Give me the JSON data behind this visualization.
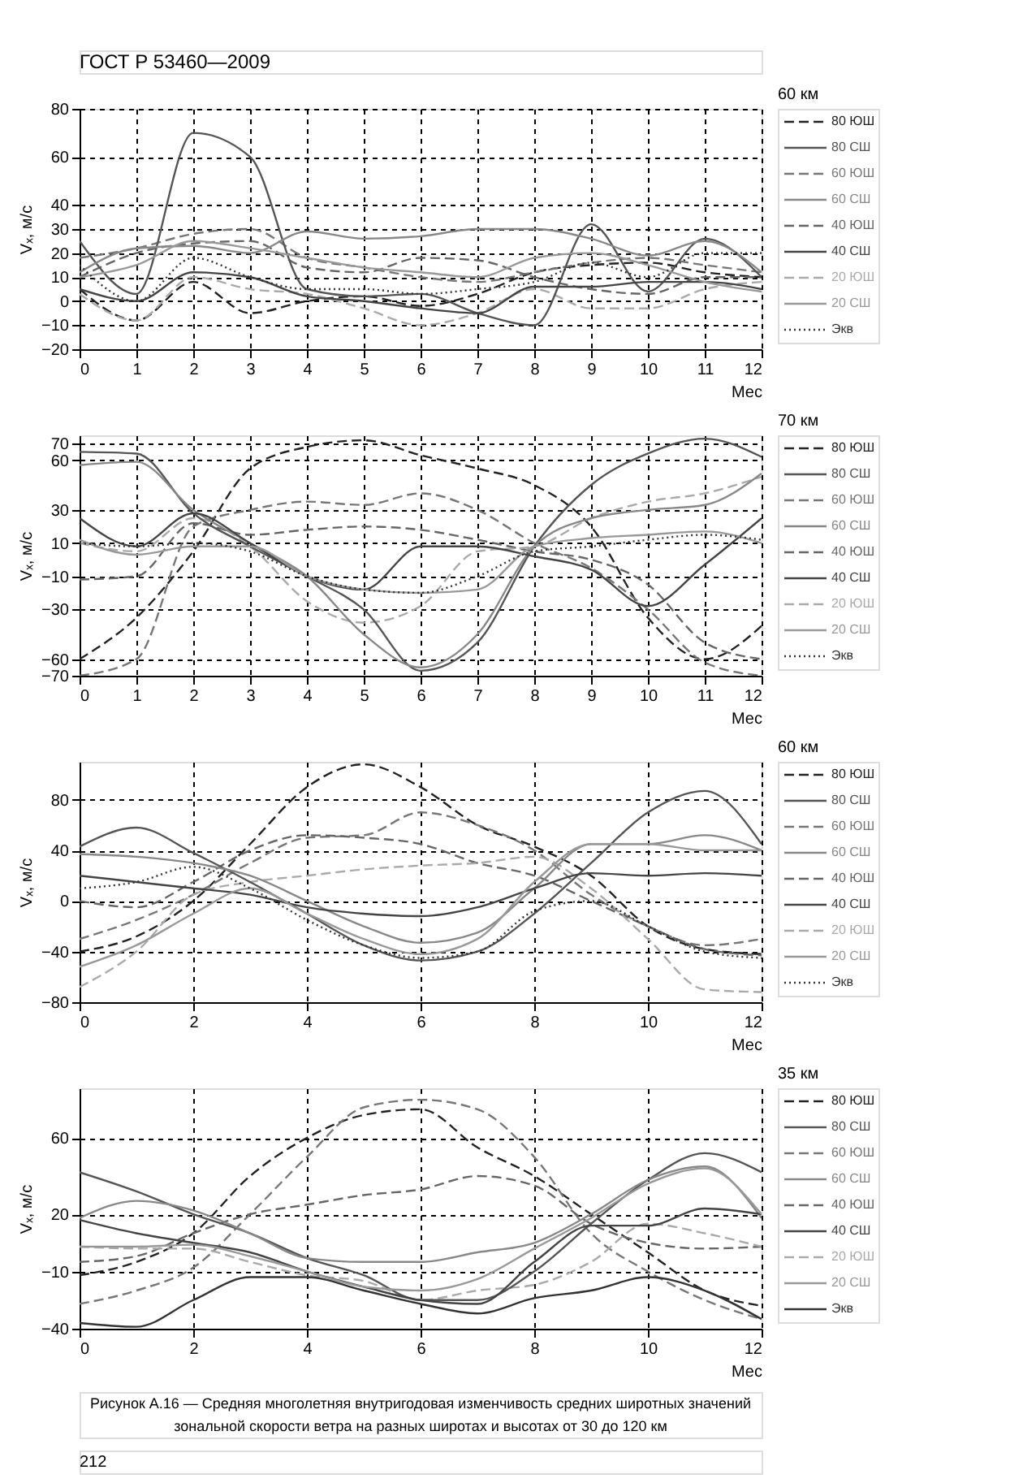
{
  "chart_data": [
    {
      "type": "line",
      "annotations": [
        "ГОСТ Р 53460—2009"
      ],
      "legend_title": "60 км",
      "xlabel": "Мес",
      "ylabel": "Vₓ, м/с",
      "xlim": [
        0,
        12
      ],
      "xticks": [
        0,
        1,
        2,
        3,
        4,
        5,
        6,
        7,
        8,
        9,
        10,
        11,
        12
      ],
      "ylim": [
        -20,
        80
      ],
      "yticks": [
        -20,
        -10,
        0,
        10,
        20,
        30,
        40,
        60,
        80
      ],
      "grid": true,
      "legend": "right",
      "x": [
        0,
        1,
        2,
        3,
        4,
        5,
        6,
        7,
        8,
        9,
        10,
        11,
        12
      ],
      "series": [
        {
          "name": "80 ЮШ",
          "color": "#222222",
          "line_style": "dashed",
          "values": [
            5,
            -8,
            8,
            -5,
            0,
            2,
            -2,
            3,
            12,
            15,
            16,
            12,
            10
          ]
        },
        {
          "name": "80 СШ",
          "color": "#555555",
          "line_style": "solid",
          "values": [
            25,
            3,
            70,
            60,
            5,
            2,
            3,
            -5,
            -10,
            32,
            4,
            26,
            10
          ]
        },
        {
          "name": "60 ЮШ",
          "color": "#777777",
          "line_style": "dashed",
          "values": [
            18,
            22,
            28,
            30,
            18,
            14,
            10,
            8,
            12,
            16,
            18,
            15,
            12
          ]
        },
        {
          "name": "60 СШ",
          "color": "#888888",
          "line_style": "solid",
          "values": [
            12,
            22,
            23,
            20,
            29,
            26,
            27,
            30,
            30,
            26,
            19,
            25,
            12
          ]
        },
        {
          "name": "40 ЮШ",
          "color": "#666666",
          "line_style": "dashed",
          "values": [
            10,
            20,
            24,
            25,
            14,
            12,
            18,
            17,
            10,
            5,
            3,
            10,
            10
          ]
        },
        {
          "name": "40 СШ",
          "color": "#444444",
          "line_style": "solid",
          "values": [
            5,
            0,
            12,
            10,
            2,
            0,
            -3,
            -5,
            6,
            6,
            8,
            8,
            5
          ]
        },
        {
          "name": "20 ЮШ",
          "color": "#aaaaaa",
          "line_style": "dashed",
          "values": [
            3,
            -8,
            10,
            5,
            3,
            -3,
            -10,
            -5,
            5,
            -3,
            -3,
            5,
            8
          ]
        },
        {
          "name": "20 СШ",
          "color": "#999999",
          "line_style": "solid",
          "values": [
            10,
            15,
            25,
            22,
            18,
            14,
            12,
            10,
            18,
            20,
            15,
            8,
            4
          ]
        },
        {
          "name": "Экв",
          "color": "#333333",
          "line_style": "dotted",
          "values": [
            15,
            0,
            18,
            10,
            5,
            5,
            3,
            5,
            8,
            16,
            10,
            20,
            20
          ]
        }
      ]
    },
    {
      "type": "line",
      "legend_title": "70 км",
      "xlabel": "Мес",
      "ylabel": "Vₓ, м/с",
      "xlim": [
        0,
        12
      ],
      "xticks": [
        0,
        1,
        2,
        3,
        4,
        5,
        6,
        7,
        8,
        9,
        10,
        11,
        12
      ],
      "ylim": [
        -70,
        75
      ],
      "yticks": [
        -70,
        -60,
        -30,
        -10,
        10,
        30,
        60,
        70
      ],
      "grid": true,
      "legend": "right",
      "x": [
        0,
        1,
        2,
        3,
        4,
        5,
        6,
        7,
        8,
        9,
        10,
        11,
        12
      ],
      "series": [
        {
          "name": "80 ЮШ",
          "color": "#222222",
          "line_style": "dashed",
          "values": [
            -60,
            -35,
            5,
            55,
            68,
            72,
            63,
            55,
            45,
            20,
            -35,
            -60,
            -40
          ]
        },
        {
          "name": "80 СШ",
          "color": "#555555",
          "line_style": "solid",
          "values": [
            65,
            64,
            28,
            8,
            -10,
            -30,
            -67,
            -50,
            8,
            45,
            64,
            73,
            62
          ]
        },
        {
          "name": "60 ЮШ",
          "color": "#777777",
          "line_style": "dashed",
          "values": [
            -70,
            -60,
            20,
            30,
            35,
            33,
            40,
            30,
            10,
            -5,
            -30,
            -62,
            -70
          ]
        },
        {
          "name": "60 СШ",
          "color": "#888888",
          "line_style": "solid",
          "values": [
            57,
            59,
            30,
            10,
            -10,
            -45,
            -65,
            -45,
            8,
            25,
            30,
            33,
            52
          ]
        },
        {
          "name": "40 ЮШ",
          "color": "#666666",
          "line_style": "dashed",
          "values": [
            -12,
            -10,
            22,
            15,
            18,
            20,
            18,
            12,
            5,
            0,
            -15,
            -50,
            -60
          ]
        },
        {
          "name": "40 СШ",
          "color": "#444444",
          "line_style": "solid",
          "values": [
            25,
            8,
            28,
            10,
            -10,
            -18,
            8,
            8,
            2,
            -6,
            -28,
            -3,
            25
          ]
        },
        {
          "name": "20 ЮШ",
          "color": "#aaaaaa",
          "line_style": "dashed",
          "values": [
            10,
            5,
            25,
            8,
            -25,
            -38,
            -28,
            5,
            8,
            25,
            35,
            40,
            50
          ]
        },
        {
          "name": "20 СШ",
          "color": "#999999",
          "line_style": "solid",
          "values": [
            12,
            3,
            8,
            8,
            -10,
            -18,
            -20,
            -18,
            8,
            13,
            15,
            17,
            10
          ]
        },
        {
          "name": "Экв",
          "color": "#333333",
          "line_style": "dotted",
          "values": [
            10,
            8,
            10,
            5,
            -10,
            -18,
            -20,
            -10,
            5,
            8,
            12,
            15,
            12
          ]
        }
      ]
    },
    {
      "type": "line",
      "legend_title": "60 км",
      "xlabel": "Мес",
      "ylabel": "Vₓ, м/с",
      "xlim": [
        0,
        12
      ],
      "xticks": [
        0,
        2,
        4,
        6,
        8,
        10,
        12
      ],
      "ylim": [
        -80,
        110
      ],
      "yticks": [
        -80,
        -40,
        0,
        40,
        80
      ],
      "grid": true,
      "legend": "right",
      "x": [
        0,
        1,
        2,
        3,
        4,
        5,
        6,
        7,
        8,
        9,
        10,
        11,
        12
      ],
      "series": [
        {
          "name": "80 ЮШ",
          "color": "#222222",
          "line_style": "dashed",
          "values": [
            -40,
            -28,
            0,
            45,
            90,
            108,
            90,
            60,
            43,
            20,
            -20,
            -38,
            -42
          ]
        },
        {
          "name": "80 СШ",
          "color": "#555555",
          "line_style": "solid",
          "values": [
            43,
            58,
            38,
            15,
            -10,
            -35,
            -47,
            -40,
            -10,
            30,
            70,
            87,
            45
          ]
        },
        {
          "name": "60 ЮШ",
          "color": "#777777",
          "line_style": "dashed",
          "values": [
            -30,
            -15,
            5,
            30,
            50,
            52,
            70,
            60,
            40,
            5,
            -20,
            -35,
            -30
          ]
        },
        {
          "name": "60 СШ",
          "color": "#888888",
          "line_style": "solid",
          "values": [
            37,
            35,
            30,
            20,
            0,
            -20,
            -33,
            -25,
            10,
            45,
            45,
            52,
            40
          ]
        },
        {
          "name": "40 ЮШ",
          "color": "#666666",
          "line_style": "dashed",
          "values": [
            0,
            -5,
            15,
            40,
            52,
            50,
            45,
            30,
            20,
            0,
            -20,
            -38,
            -43
          ]
        },
        {
          "name": "40 СШ",
          "color": "#444444",
          "line_style": "solid",
          "values": [
            20,
            15,
            10,
            5,
            -5,
            -10,
            -12,
            -5,
            10,
            22,
            20,
            22,
            20
          ]
        },
        {
          "name": "20 ЮШ",
          "color": "#aaaaaa",
          "line_style": "dashed",
          "values": [
            -68,
            -40,
            5,
            15,
            20,
            25,
            28,
            30,
            35,
            10,
            -30,
            -70,
            -72
          ]
        },
        {
          "name": "20 СШ",
          "color": "#999999",
          "line_style": "solid",
          "values": [
            -52,
            -35,
            -10,
            10,
            -10,
            -30,
            -42,
            -30,
            15,
            45,
            45,
            40,
            40
          ]
        },
        {
          "name": "Экв",
          "color": "#333333",
          "line_style": "dotted",
          "values": [
            10,
            15,
            27,
            10,
            -15,
            -35,
            -45,
            -40,
            -8,
            0,
            -20,
            -40,
            -45
          ]
        }
      ]
    },
    {
      "type": "line",
      "legend_title": "35 км",
      "xlabel": "Мес",
      "ylabel": "Vₓ, м/с",
      "xlim": [
        0,
        12
      ],
      "xticks": [
        0,
        2,
        4,
        6,
        8,
        10,
        12
      ],
      "ylim": [
        -40,
        86
      ],
      "yticks": [
        -40,
        -10,
        20,
        60
      ],
      "grid": true,
      "legend": "right",
      "x": [
        0,
        1,
        2,
        3,
        4,
        5,
        6,
        7,
        8,
        9,
        10,
        11,
        12
      ],
      "annotations": [
        "Рисунок А.16 — Средняя многолетняя внутригодовая изменчивость средних широтных значений",
        "зональной скорости ветра на разных широтах и высотах от 30 до 120 км",
        "212"
      ],
      "series": [
        {
          "name": "80 ЮШ",
          "color": "#222222",
          "line_style": "dashed",
          "values": [
            -12,
            -5,
            10,
            40,
            60,
            72,
            75,
            55,
            40,
            20,
            0,
            -20,
            -28
          ]
        },
        {
          "name": "80 СШ",
          "color": "#555555",
          "line_style": "solid",
          "values": [
            42,
            32,
            20,
            10,
            -3,
            -12,
            -25,
            -25,
            -10,
            15,
            38,
            52,
            42
          ]
        },
        {
          "name": "60 ЮШ",
          "color": "#777777",
          "line_style": "dashed",
          "values": [
            -27,
            -20,
            -8,
            20,
            50,
            76,
            80,
            75,
            50,
            10,
            -10,
            -25,
            -35
          ]
        },
        {
          "name": "60 СШ",
          "color": "#888888",
          "line_style": "solid",
          "values": [
            18,
            27,
            22,
            10,
            -3,
            -5,
            -5,
            0,
            5,
            20,
            38,
            45,
            18
          ]
        },
        {
          "name": "40 ЮШ",
          "color": "#666666",
          "line_style": "dashed",
          "values": [
            -5,
            -2,
            10,
            20,
            25,
            30,
            33,
            40,
            35,
            15,
            5,
            2,
            3
          ]
        },
        {
          "name": "40 СШ",
          "color": "#444444",
          "line_style": "solid",
          "values": [
            17,
            10,
            5,
            0,
            -10,
            -18,
            -25,
            -27,
            -5,
            14,
            14,
            23,
            20
          ]
        },
        {
          "name": "20 ЮШ",
          "color": "#aaaaaa",
          "line_style": "dashed",
          "values": [
            3,
            2,
            2,
            -5,
            -12,
            -15,
            -25,
            -20,
            -17,
            -5,
            15,
            10,
            3
          ]
        },
        {
          "name": "20 СШ",
          "color": "#999999",
          "line_style": "solid",
          "values": [
            3,
            3,
            4,
            -2,
            -10,
            -18,
            -20,
            -14,
            2,
            18,
            36,
            44,
            20
          ]
        },
        {
          "name": "Экв",
          "color": "#333333",
          "line_style": "solid",
          "values": [
            -37,
            -39,
            -25,
            -13,
            -13,
            -20,
            -27,
            -32,
            -24,
            -20,
            -13,
            -20,
            -35
          ]
        }
      ]
    }
  ]
}
